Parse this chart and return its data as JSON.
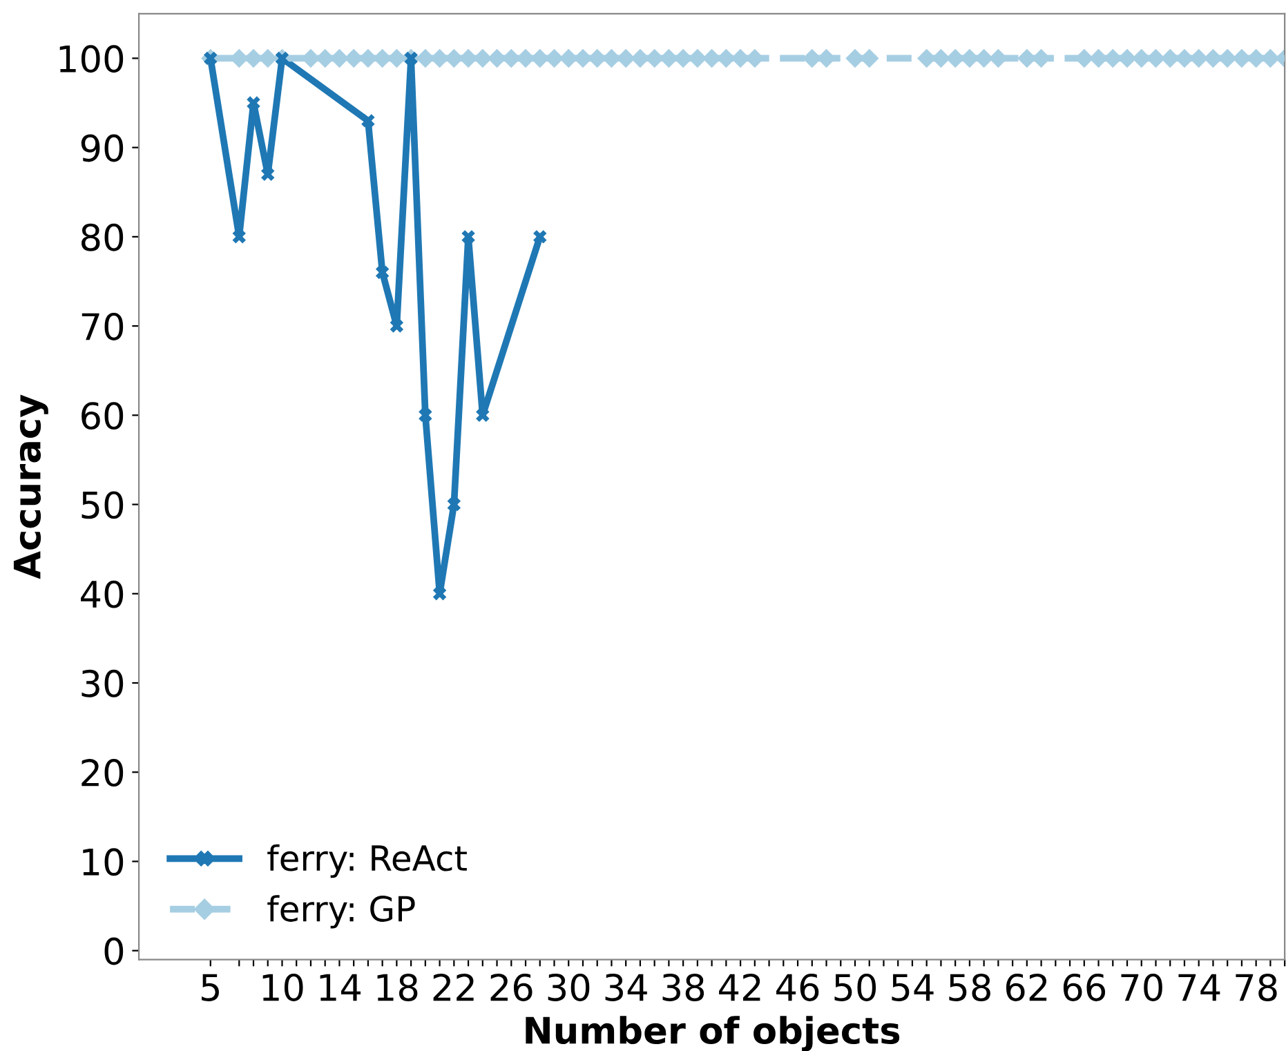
{
  "chart_data": {
    "type": "line",
    "xlabel": "Number of objects",
    "ylabel": "Accuracy",
    "xlim": [
      0,
      80
    ],
    "ylim": [
      -1,
      105
    ],
    "xticks": [
      5,
      {
        "value": 7,
        "label": null
      },
      {
        "value": 8,
        "label": null
      },
      {
        "value": 9,
        "label": null
      },
      10,
      {
        "value": 11,
        "label": null
      },
      {
        "value": 12,
        "label": null
      },
      {
        "value": 13,
        "label": null
      },
      14,
      {
        "value": 15,
        "label": null
      },
      {
        "value": 16,
        "label": null
      },
      {
        "value": 17,
        "label": null
      },
      18,
      {
        "value": 19,
        "label": null
      },
      {
        "value": 20,
        "label": null
      },
      {
        "value": 21,
        "label": null
      },
      22,
      {
        "value": 23,
        "label": null
      },
      {
        "value": 24,
        "label": null
      },
      {
        "value": 25,
        "label": null
      },
      26,
      {
        "value": 27,
        "label": null
      },
      {
        "value": 28,
        "label": null
      },
      {
        "value": 29,
        "label": null
      },
      30,
      {
        "value": 31,
        "label": null
      },
      {
        "value": 32,
        "label": null
      },
      {
        "value": 33,
        "label": null
      },
      34,
      {
        "value": 35,
        "label": null
      },
      {
        "value": 36,
        "label": null
      },
      {
        "value": 37,
        "label": null
      },
      38,
      {
        "value": 39,
        "label": null
      },
      {
        "value": 40,
        "label": null
      },
      {
        "value": 41,
        "label": null
      },
      42,
      {
        "value": 43,
        "label": null
      },
      {
        "value": 44,
        "label": null
      },
      {
        "value": 45,
        "label": null
      },
      46,
      {
        "value": 47,
        "label": null
      },
      {
        "value": 48,
        "label": null
      },
      {
        "value": 49,
        "label": null
      },
      50,
      {
        "value": 51,
        "label": null
      },
      {
        "value": 52,
        "label": null
      },
      {
        "value": 53,
        "label": null
      },
      54,
      {
        "value": 55,
        "label": null
      },
      {
        "value": 56,
        "label": null
      },
      {
        "value": 57,
        "label": null
      },
      58,
      {
        "value": 59,
        "label": null
      },
      {
        "value": 60,
        "label": null
      },
      {
        "value": 61,
        "label": null
      },
      62,
      {
        "value": 63,
        "label": null
      },
      {
        "value": 64,
        "label": null
      },
      {
        "value": 65,
        "label": null
      },
      66,
      {
        "value": 67,
        "label": null
      },
      {
        "value": 68,
        "label": null
      },
      {
        "value": 69,
        "label": null
      },
      70,
      {
        "value": 71,
        "label": null
      },
      {
        "value": 72,
        "label": null
      },
      {
        "value": 73,
        "label": null
      },
      74,
      {
        "value": 75,
        "label": null
      },
      {
        "value": 76,
        "label": null
      },
      {
        "value": 77,
        "label": null
      },
      78,
      {
        "value": 79,
        "label": null
      },
      {
        "value": 80,
        "label": null
      }
    ],
    "yticks": [
      0,
      10,
      20,
      30,
      40,
      50,
      60,
      70,
      80,
      90,
      100
    ],
    "grid": false,
    "legend": "bottom left",
    "series": [
      {
        "name": "ferry: ReAct",
        "color": "#1f78b4",
        "marker": "cross",
        "line_style": "solid",
        "x": [
          5,
          7,
          8,
          9,
          10,
          16,
          17,
          18,
          19,
          20,
          21,
          22,
          23,
          24,
          28
        ],
        "values": [
          100,
          80,
          95,
          87,
          100,
          93,
          76,
          70,
          100,
          60,
          40,
          50,
          80,
          60,
          80
        ]
      },
      {
        "name": "ferry: GP",
        "color": "#a6cee3",
        "marker": "diamond",
        "line_style": "dashed",
        "x": [
          5,
          7,
          8,
          9,
          10,
          12,
          13,
          14,
          15,
          16,
          17,
          18,
          19,
          20,
          21,
          22,
          23,
          24,
          25,
          26,
          27,
          28,
          29,
          30,
          31,
          32,
          33,
          34,
          35,
          36,
          37,
          38,
          39,
          40,
          41,
          42,
          43,
          47,
          48,
          50,
          51,
          55,
          56,
          57,
          58,
          59,
          60,
          62,
          63,
          66,
          67,
          68,
          69,
          70,
          71,
          72,
          73,
          74,
          75,
          76,
          77,
          78,
          79,
          80
        ],
        "values": [
          100,
          100,
          100,
          100,
          100,
          100,
          100,
          100,
          100,
          100,
          100,
          100,
          100,
          100,
          100,
          100,
          100,
          100,
          100,
          100,
          100,
          100,
          100,
          100,
          100,
          100,
          100,
          100,
          100,
          100,
          100,
          100,
          100,
          100,
          100,
          100,
          100,
          100,
          100,
          100,
          100,
          100,
          100,
          100,
          100,
          100,
          100,
          100,
          100,
          100,
          100,
          100,
          100,
          100,
          100,
          100,
          100,
          100,
          100,
          100,
          100,
          100,
          100,
          100
        ]
      }
    ]
  }
}
